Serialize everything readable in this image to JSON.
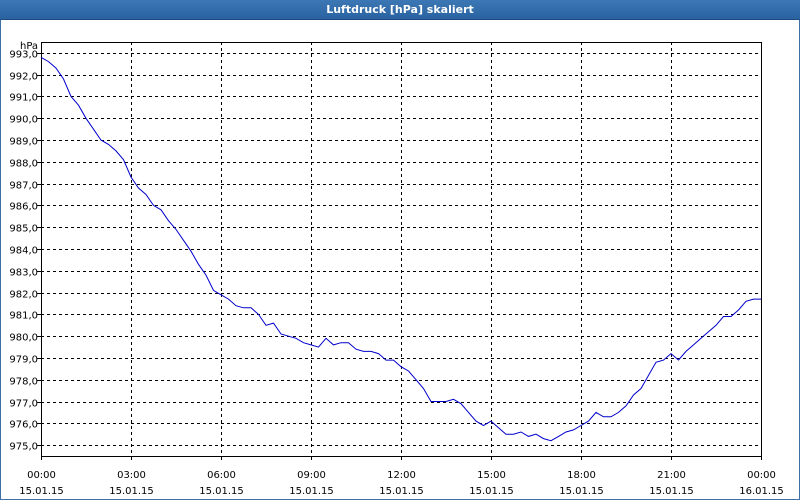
{
  "window": {
    "title": "Luftdruck [hPa] skaliert"
  },
  "chart_data": {
    "type": "line",
    "title": "Luftdruck [hPa] skaliert",
    "ylabel": "hPa",
    "xlabel": "",
    "ylim": [
      974.5,
      993.5
    ],
    "xlim": [
      0,
      24
    ],
    "grid": true,
    "y_ticks": [
      "975,0",
      "976,0",
      "977,0",
      "978,0",
      "979,0",
      "980,0",
      "981,0",
      "982,0",
      "983,0",
      "984,0",
      "985,0",
      "986,0",
      "987,0",
      "988,0",
      "989,0",
      "990,0",
      "991,0",
      "992,0",
      "993,0"
    ],
    "y_tick_values": [
      975,
      976,
      977,
      978,
      979,
      980,
      981,
      982,
      983,
      984,
      985,
      986,
      987,
      988,
      989,
      990,
      991,
      992,
      993
    ],
    "x_tick_values": [
      0,
      3,
      6,
      9,
      12,
      15,
      18,
      21,
      24
    ],
    "x_ticks": [
      {
        "time": "00:00",
        "date": "15.01.15"
      },
      {
        "time": "03:00",
        "date": "15.01.15"
      },
      {
        "time": "06:00",
        "date": "15.01.15"
      },
      {
        "time": "09:00",
        "date": "15.01.15"
      },
      {
        "time": "12:00",
        "date": "15.01.15"
      },
      {
        "time": "15:00",
        "date": "15.01.15"
      },
      {
        "time": "18:00",
        "date": "15.01.15"
      },
      {
        "time": "21:00",
        "date": "15.01.15"
      },
      {
        "time": "00:00",
        "date": "16.01.15"
      }
    ],
    "series": [
      {
        "color": "#0000cc",
        "x": [
          0,
          0.25,
          0.5,
          0.75,
          1,
          1.25,
          1.5,
          1.75,
          2,
          2.25,
          2.5,
          2.75,
          3,
          3.25,
          3.5,
          3.75,
          4,
          4.25,
          4.5,
          4.75,
          5,
          5.25,
          5.5,
          5.75,
          6,
          6.25,
          6.5,
          6.75,
          7,
          7.25,
          7.5,
          7.75,
          8,
          8.25,
          8.5,
          8.75,
          9,
          9.25,
          9.5,
          9.75,
          10,
          10.25,
          10.5,
          10.75,
          11,
          11.25,
          11.5,
          11.75,
          12,
          12.25,
          12.5,
          12.75,
          13,
          13.25,
          13.5,
          13.75,
          14,
          14.25,
          14.5,
          14.75,
          15,
          15.25,
          15.5,
          15.75,
          16,
          16.25,
          16.5,
          16.75,
          17,
          17.25,
          17.5,
          17.75,
          18,
          18.25,
          18.5,
          18.75,
          19,
          19.25,
          19.5,
          19.75,
          20,
          20.25,
          20.5,
          20.75,
          21,
          21.25,
          21.5,
          21.75,
          22,
          22.25,
          22.5,
          22.75,
          23,
          23.25,
          23.5,
          23.75,
          24
        ],
        "y": [
          992.8,
          992.6,
          992.3,
          991.8,
          991.0,
          990.6,
          990.0,
          989.5,
          989.0,
          988.8,
          988.5,
          988.1,
          987.3,
          986.8,
          986.5,
          986.0,
          985.8,
          985.3,
          984.9,
          984.4,
          983.9,
          983.3,
          982.8,
          982.1,
          981.9,
          981.7,
          981.4,
          981.3,
          981.3,
          981.0,
          980.5,
          980.6,
          980.1,
          980.0,
          979.9,
          979.7,
          979.6,
          979.5,
          979.9,
          979.6,
          979.7,
          979.7,
          979.4,
          979.3,
          979.3,
          979.2,
          978.9,
          978.9,
          978.6,
          978.4,
          978.0,
          977.6,
          977.0,
          977.0,
          977.0,
          977.1,
          976.9,
          976.5,
          976.1,
          975.9,
          976.1,
          975.8,
          975.5,
          975.5,
          975.6,
          975.4,
          975.5,
          975.3,
          975.2,
          975.4,
          975.6,
          975.7,
          975.9,
          976.1,
          976.5,
          976.3,
          976.3,
          976.5,
          976.8,
          977.3,
          977.6,
          978.2,
          978.8,
          978.9,
          979.2,
          978.9,
          979.3,
          979.6,
          979.9,
          980.2,
          980.5,
          980.9,
          980.9,
          981.2,
          981.6,
          981.7,
          981.7
        ]
      }
    ]
  }
}
